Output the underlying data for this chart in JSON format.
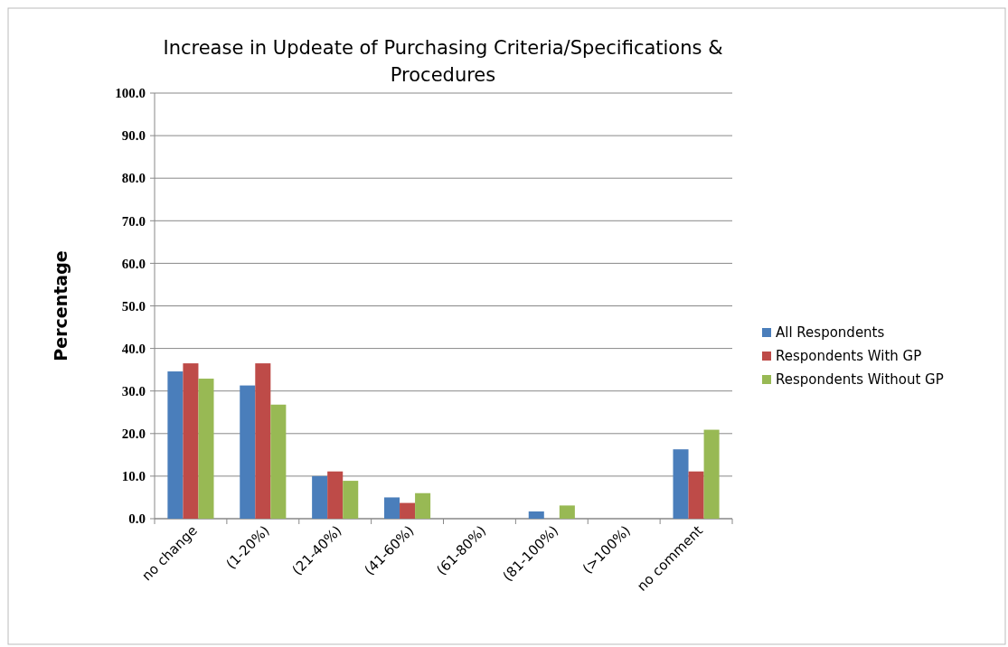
{
  "chart_data": {
    "type": "bar",
    "title": "Increase in Updeate of Purchasing Criteria/Specifications & Procedures",
    "ylabel": "Percentage",
    "categories": [
      "no change",
      "(1-20%)",
      "(21-40%)",
      "(41-60%)",
      "(61-80%)",
      "(81-100%)",
      "(>100%)",
      "no comment"
    ],
    "series": [
      {
        "name": "All Respondents",
        "color": "#4a7ebb",
        "values": [
          34.6,
          31.3,
          10.0,
          5.0,
          0,
          1.7,
          0,
          16.3
        ]
      },
      {
        "name": "Respondents With GP",
        "color": "#be4b48",
        "values": [
          36.5,
          36.5,
          11.1,
          3.7,
          0,
          0,
          0,
          11.1
        ]
      },
      {
        "name": "Respondents Without GP",
        "color": "#98b954",
        "values": [
          32.9,
          26.8,
          8.9,
          6.0,
          0,
          3.1,
          0,
          20.9
        ]
      }
    ],
    "ylim": [
      0,
      100
    ],
    "yticks": [
      {
        "value": 0,
        "label": "0.0"
      },
      {
        "value": 10,
        "label": "10.0"
      },
      {
        "value": 20,
        "label": "20.0"
      },
      {
        "value": 30,
        "label": "30.0"
      },
      {
        "value": 40,
        "label": "40.0"
      },
      {
        "value": 50,
        "label": "50.0"
      },
      {
        "value": 60,
        "label": "60.0"
      },
      {
        "value": 70,
        "label": "70.0"
      },
      {
        "value": 80,
        "label": "80.0"
      },
      {
        "value": 90,
        "label": "90.0"
      },
      {
        "value": 100,
        "label": "100.0"
      }
    ],
    "grid": "y",
    "legend": "right"
  }
}
